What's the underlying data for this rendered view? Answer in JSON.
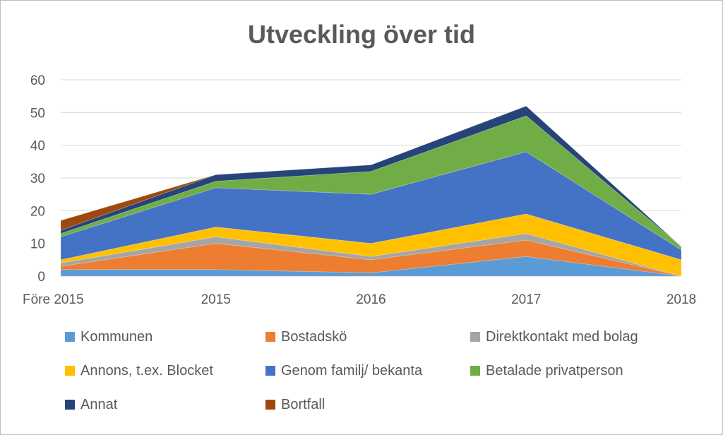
{
  "chart_data": {
    "type": "area",
    "stacked": true,
    "title": "Utveckling över tid",
    "xlabel": "",
    "ylabel": "",
    "categories": [
      "Före 2015",
      "2015",
      "2016",
      "2017",
      "2018"
    ],
    "ylim": [
      0,
      60
    ],
    "yticks": [
      0,
      10,
      20,
      30,
      40,
      50,
      60
    ],
    "grid": true,
    "legend_position": "bottom",
    "series": [
      {
        "name": "Kommunen",
        "color": "#5b9bd5",
        "values": [
          2,
          2,
          1,
          6,
          0
        ]
      },
      {
        "name": "Bostadskö",
        "color": "#ed7d31",
        "values": [
          1,
          8,
          4,
          5,
          0
        ]
      },
      {
        "name": "Direktkontakt med bolag",
        "color": "#a5a5a5",
        "values": [
          1,
          2,
          1,
          2,
          0
        ]
      },
      {
        "name": "Annons, t.ex. Blocket",
        "color": "#ffc000",
        "values": [
          1,
          3,
          4,
          6,
          5
        ]
      },
      {
        "name": "Genom familj/ bekanta",
        "color": "#4472c4",
        "values": [
          7,
          12,
          15,
          19,
          3
        ]
      },
      {
        "name": "Betalade privatperson",
        "color": "#70ad47",
        "values": [
          1,
          2,
          7,
          11,
          1
        ]
      },
      {
        "name": "Annat",
        "color": "#264478",
        "values": [
          1,
          2,
          2,
          3,
          0
        ]
      },
      {
        "name": "Bortfall",
        "color": "#9e480e",
        "values": [
          3,
          0,
          0,
          0,
          0
        ]
      }
    ]
  }
}
